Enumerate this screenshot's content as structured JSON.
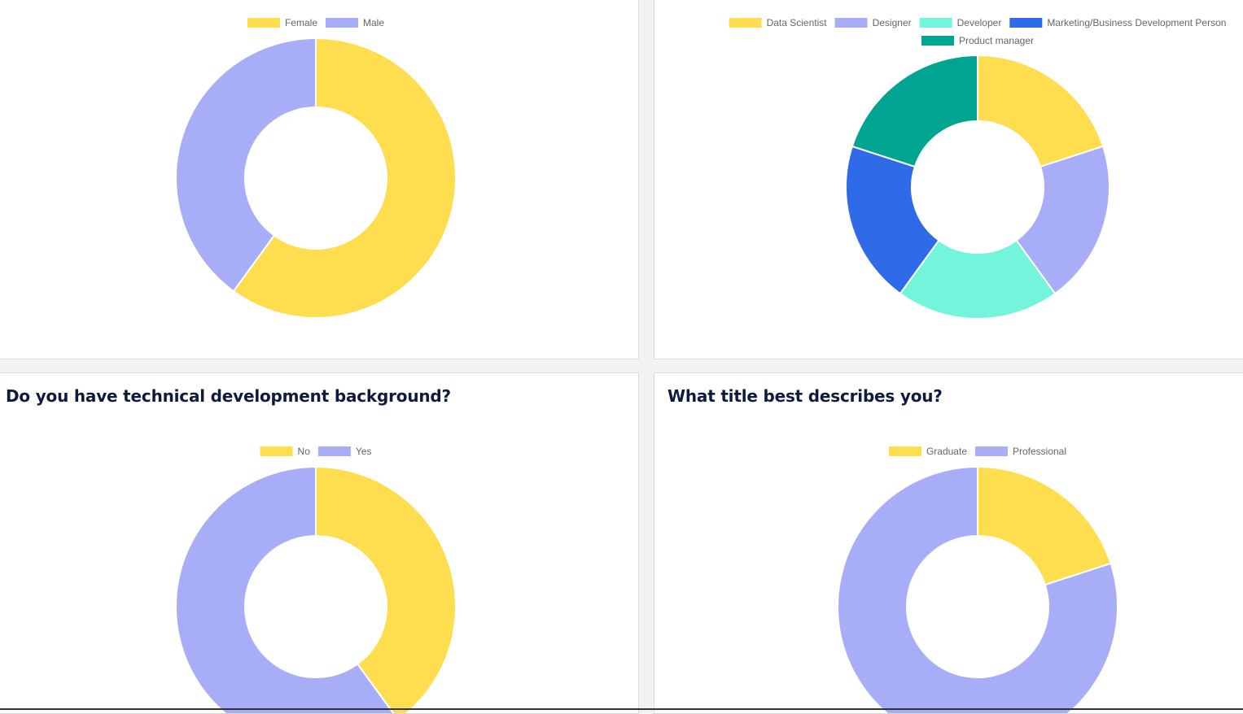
{
  "colors": {
    "yellow": "#fedd4e",
    "lavender": "#a7aef7",
    "mint": "#72f5da",
    "blue": "#2f6be9",
    "teal": "#00a591"
  },
  "cards": [
    {
      "title": ""
    },
    {
      "title": ""
    },
    {
      "title": "Do you have technical development background?"
    },
    {
      "title": "What title best describes you?"
    }
  ],
  "chart_data": [
    {
      "type": "pie",
      "categories": [
        "Female",
        "Male"
      ],
      "values": [
        60,
        40
      ],
      "colors": [
        "#fedd4e",
        "#a7aef7"
      ],
      "legend": "top"
    },
    {
      "type": "pie",
      "categories": [
        "Data Scientist",
        "Designer",
        "Developer",
        "Marketing/Business Development Person",
        "Product manager"
      ],
      "values": [
        20,
        20,
        20,
        20,
        20
      ],
      "colors": [
        "#fedd4e",
        "#a7aef7",
        "#72f5da",
        "#2f6be9",
        "#00a591"
      ],
      "legend": "top"
    },
    {
      "type": "pie",
      "title": "Do you have technical development background?",
      "categories": [
        "No",
        "Yes"
      ],
      "values": [
        40,
        60
      ],
      "colors": [
        "#fedd4e",
        "#a7aef7"
      ],
      "legend": "top"
    },
    {
      "type": "pie",
      "title": "What title best describes you?",
      "categories": [
        "Graduate",
        "Professional"
      ],
      "values": [
        20,
        80
      ],
      "colors": [
        "#fedd4e",
        "#a7aef7"
      ],
      "legend": "top"
    }
  ]
}
